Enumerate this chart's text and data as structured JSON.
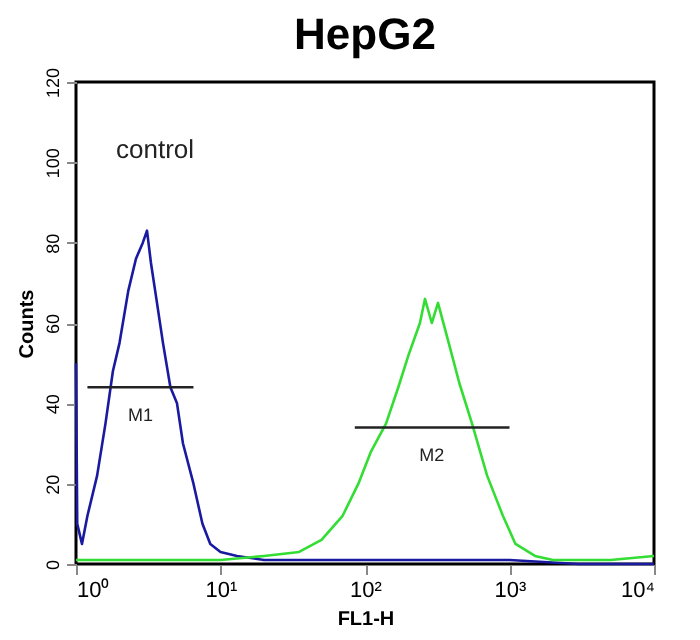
{
  "chart_data": {
    "type": "line",
    "title": "HepG2",
    "xlabel": "FL1-H",
    "ylabel": "Counts",
    "log": "x",
    "xlim": [
      1,
      10000
    ],
    "ylim": [
      0,
      120
    ],
    "xticks": [
      {
        "value": 1,
        "label": "10⁰"
      },
      {
        "value": 10,
        "label": "10¹"
      },
      {
        "value": 100,
        "label": "10²"
      },
      {
        "value": 1000,
        "label": "10³"
      },
      {
        "value": 10000,
        "label": "10⁴"
      }
    ],
    "yticks": [
      0,
      20,
      40,
      60,
      80,
      100,
      120
    ],
    "grid": false,
    "marker": "none",
    "line_style": "solid",
    "series": [
      {
        "color": "#1a1aa0",
        "x": [
          1.0,
          1.02,
          1.1,
          1.2,
          1.4,
          1.6,
          1.8,
          2.0,
          2.3,
          2.6,
          2.9,
          3.1,
          3.3,
          3.6,
          4.0,
          4.5,
          5.0,
          5.5,
          6.5,
          7.5,
          8.5,
          10,
          13,
          20,
          50,
          100,
          300,
          1000,
          3000,
          10000
        ],
        "values": [
          50,
          10,
          5,
          12,
          22,
          35,
          48,
          55,
          68,
          76,
          80,
          83,
          75,
          66,
          55,
          44,
          40,
          30,
          20,
          10,
          5,
          3,
          2,
          1,
          1,
          1,
          1,
          1,
          0,
          0
        ]
      },
      {
        "color": "#33dd33",
        "x": [
          1,
          5,
          10,
          20,
          35,
          50,
          70,
          90,
          110,
          140,
          170,
          200,
          240,
          260,
          290,
          320,
          380,
          450,
          550,
          700,
          900,
          1100,
          1500,
          2000,
          5000,
          10000
        ],
        "values": [
          1,
          1,
          1,
          2,
          3,
          6,
          12,
          20,
          28,
          35,
          44,
          52,
          60,
          66,
          60,
          65,
          55,
          45,
          35,
          22,
          12,
          5,
          2,
          1,
          1,
          2
        ]
      },
      {
        "color": "#222222",
        "x": [
          1.2,
          6.5
        ],
        "values": [
          44,
          44
        ]
      },
      {
        "color": "#222222",
        "x": [
          85,
          1000
        ],
        "values": [
          34,
          34
        ]
      }
    ],
    "annotations": [
      "control",
      {
        "text": "M1",
        "x": 2.8,
        "y": 44
      },
      {
        "text": "M2",
        "x": 290,
        "y": 34
      }
    ]
  }
}
